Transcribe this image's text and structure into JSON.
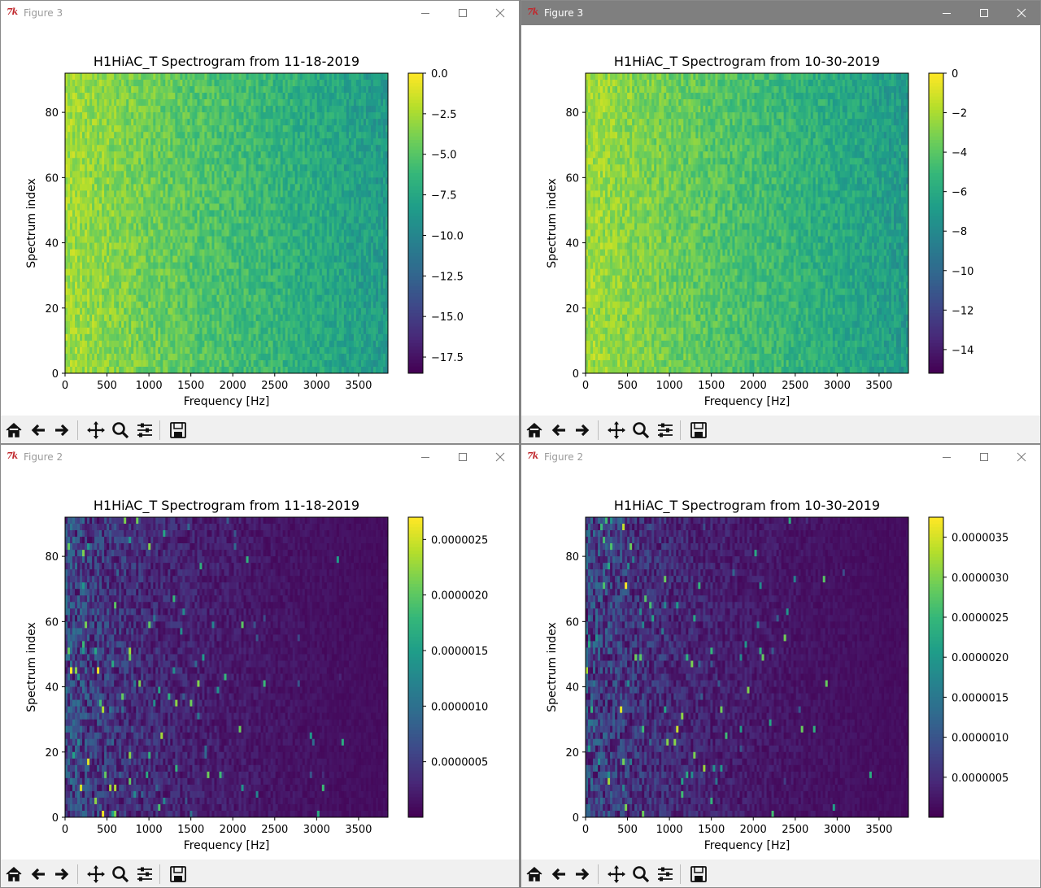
{
  "windows": [
    {
      "id": "top-left",
      "window_title": "Figure 3",
      "active": false,
      "plot_title": "H1HiAC_T Spectrogram from 11-18-2019",
      "xlabel": "Frequency [Hz]",
      "ylabel": "Spectrum index",
      "x_ticks": [
        "0",
        "500",
        "1000",
        "1500",
        "2000",
        "2500",
        "3000",
        "3500"
      ],
      "y_ticks": [
        "0",
        "20",
        "40",
        "60",
        "80"
      ],
      "colorbar_ticks": [
        "0.0",
        "−2.5",
        "−5.0",
        "−7.5",
        "−10.0",
        "−12.5",
        "−15.0",
        "−17.5"
      ],
      "colorbar_values": [
        0,
        -2.5,
        -5,
        -7.5,
        -10,
        -12.5,
        -15,
        -17.5
      ],
      "colorbar_range": [
        -18.5,
        0
      ],
      "style": "log"
    },
    {
      "id": "top-right",
      "window_title": "Figure 3",
      "active": true,
      "plot_title": "H1HiAC_T Spectrogram from 10-30-2019",
      "xlabel": "Frequency [Hz]",
      "ylabel": "Spectrum index",
      "x_ticks": [
        "0",
        "500",
        "1000",
        "1500",
        "2000",
        "2500",
        "3000",
        "3500"
      ],
      "y_ticks": [
        "0",
        "20",
        "40",
        "60",
        "80"
      ],
      "colorbar_ticks": [
        "0",
        "−2",
        "−4",
        "−6",
        "−8",
        "−10",
        "−12",
        "−14"
      ],
      "colorbar_values": [
        0,
        -2,
        -4,
        -6,
        -8,
        -10,
        -12,
        -14
      ],
      "colorbar_range": [
        -15.2,
        0
      ],
      "style": "log"
    },
    {
      "id": "bottom-left",
      "window_title": "Figure 2",
      "active": false,
      "plot_title": "H1HiAC_T Spectrogram from 11-18-2019",
      "xlabel": "Frequency [Hz]",
      "ylabel": "Spectrum index",
      "x_ticks": [
        "0",
        "500",
        "1000",
        "1500",
        "2000",
        "2500",
        "3000",
        "3500"
      ],
      "y_ticks": [
        "0",
        "20",
        "40",
        "60",
        "80"
      ],
      "colorbar_ticks": [
        "0.0000025",
        "0.0000020",
        "0.0000015",
        "0.0000010",
        "0.0000005"
      ],
      "colorbar_values": [
        2.5e-06,
        2e-06,
        1.5e-06,
        1e-06,
        5e-07
      ],
      "colorbar_range": [
        0,
        2.7e-06
      ],
      "style": "linear"
    },
    {
      "id": "bottom-right",
      "window_title": "Figure 2",
      "active": false,
      "plot_title": "H1HiAC_T Spectrogram from 10-30-2019",
      "xlabel": "Frequency [Hz]",
      "ylabel": "Spectrum index",
      "x_ticks": [
        "0",
        "500",
        "1000",
        "1500",
        "2000",
        "2500",
        "3000",
        "3500"
      ],
      "y_ticks": [
        "0",
        "20",
        "40",
        "60",
        "80"
      ],
      "colorbar_ticks": [
        "0.0000035",
        "0.0000030",
        "0.0000025",
        "0.0000020",
        "0.0000015",
        "0.0000010",
        "0.0000005"
      ],
      "colorbar_values": [
        3.5e-06,
        3e-06,
        2.5e-06,
        2e-06,
        1.5e-06,
        1e-06,
        5e-07
      ],
      "colorbar_range": [
        0,
        3.75e-06
      ],
      "style": "linear"
    }
  ],
  "axes": {
    "x_range": [
      0,
      3850
    ],
    "x_tick_values": [
      0,
      500,
      1000,
      1500,
      2000,
      2500,
      3000,
      3500
    ],
    "y_range": [
      0,
      92
    ],
    "y_tick_values": [
      0,
      20,
      40,
      60,
      80
    ]
  },
  "toolbar_buttons": [
    "home-icon",
    "back-arrow-icon",
    "forward-arrow-icon",
    "pan-icon",
    "zoom-icon",
    "configure-subplots-icon",
    "save-icon"
  ],
  "colors": {
    "viridis": [
      "#440154",
      "#482878",
      "#3e4989",
      "#31688e",
      "#26828e",
      "#1f9e89",
      "#35b779",
      "#6ece58",
      "#b5de2b",
      "#fde725"
    ],
    "active_titlebar": "#7f7f7f"
  }
}
